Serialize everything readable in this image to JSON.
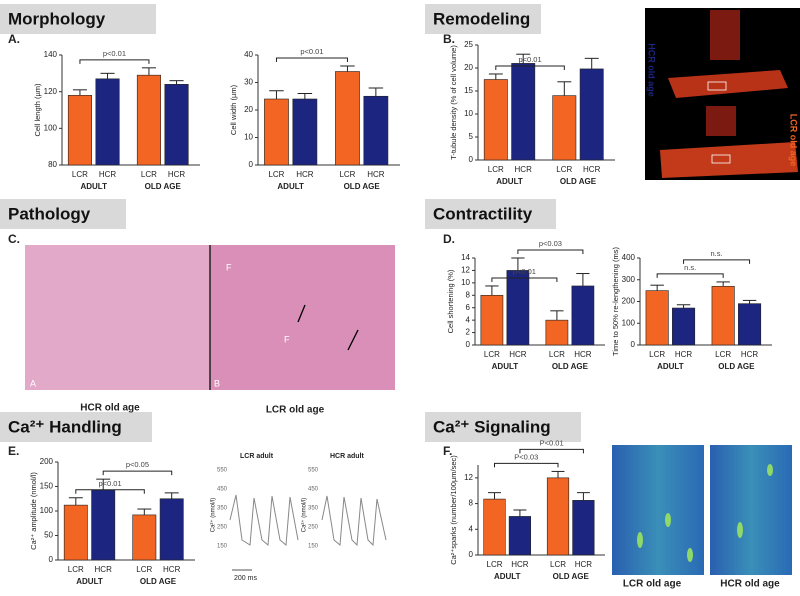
{
  "sections": [
    {
      "title": "Morphology",
      "panel": "A."
    },
    {
      "title": "Remodeling",
      "panel": "B."
    },
    {
      "title": "Pathology",
      "panel": "C."
    },
    {
      "title": "Contractility",
      "panel": "D."
    },
    {
      "title": "Ca²⁺ Handling",
      "panel": "E."
    },
    {
      "title": "Ca²⁺ Signaling",
      "panel": "F."
    }
  ],
  "images": {
    "remodeling": {
      "top_label": "HCR old age",
      "side_label": "LCR old age"
    },
    "histology": {
      "panel_left": "A",
      "panel_right": "B",
      "marks": [
        "F",
        "F"
      ],
      "captions": [
        "HCR old age",
        "LCR old age"
      ]
    },
    "traces": [
      {
        "title": "LCR adult",
        "ylabel": "Ca²⁺ (nmol/l)",
        "ticks": [
          550,
          450,
          350,
          250,
          150
        ],
        "scale": "200 ms"
      },
      {
        "title": "HCR adult",
        "ylabel": "Ca²⁺ (nmol/l)",
        "ticks": [
          550,
          450,
          350,
          250,
          150
        ]
      }
    ],
    "sparks": {
      "captions": [
        "LCR old age",
        "HCR old age"
      ]
    }
  },
  "chart_data": [
    {
      "type": "bar",
      "ylabel": "Cell length (µm)",
      "categories": [
        "LCR",
        "HCR",
        "LCR",
        "HCR"
      ],
      "groups": [
        "ADULT",
        "OLD AGE"
      ],
      "values": [
        118,
        127,
        129,
        124
      ],
      "errors": [
        3,
        3,
        4,
        2
      ],
      "colors": [
        "#f26522",
        "#1c2580",
        "#f26522",
        "#1c2580"
      ],
      "ylim": [
        80,
        140
      ],
      "yticks": [
        80,
        100,
        120,
        140
      ],
      "comparisons": [
        "p<0.01"
      ]
    },
    {
      "type": "bar",
      "ylabel": "Cell width (µm)",
      "categories": [
        "LCR",
        "HCR",
        "LCR",
        "HCR"
      ],
      "groups": [
        "ADULT",
        "OLD AGE"
      ],
      "values": [
        24,
        24,
        34,
        25
      ],
      "errors": [
        3,
        2,
        2,
        3
      ],
      "colors": [
        "#f26522",
        "#1c2580",
        "#f26522",
        "#1c2580"
      ],
      "ylim": [
        0,
        40
      ],
      "yticks": [
        0,
        10,
        20,
        30,
        40
      ],
      "comparisons": [
        "p<0.01"
      ]
    },
    {
      "type": "bar",
      "ylabel": "T-tubule density (% of cell volume)",
      "categories": [
        "LCR",
        "HCR",
        "LCR",
        "HCR"
      ],
      "groups": [
        "ADULT",
        "OLD AGE"
      ],
      "values": [
        17.5,
        21,
        14,
        19.8
      ],
      "errors": [
        1.2,
        2,
        3,
        2.3
      ],
      "colors": [
        "#f26522",
        "#1c2580",
        "#f26522",
        "#1c2580"
      ],
      "ylim": [
        0,
        25
      ],
      "yticks": [
        0,
        5,
        10,
        15,
        20,
        25
      ],
      "comparisons": [
        "p<0.01"
      ]
    },
    {
      "type": "bar",
      "ylabel": "Cell shortening (%)",
      "categories": [
        "LCR",
        "HCR",
        "LCR",
        "HCR"
      ],
      "groups": [
        "ADULT",
        "OLD AGE"
      ],
      "values": [
        8,
        12,
        4,
        9.5
      ],
      "errors": [
        1.5,
        2,
        1.5,
        2
      ],
      "colors": [
        "#f26522",
        "#1c2580",
        "#f26522",
        "#1c2580"
      ],
      "ylim": [
        0,
        14
      ],
      "yticks": [
        0,
        2,
        4,
        6,
        8,
        10,
        12,
        14
      ],
      "comparisons": [
        "p<0.01",
        "p<0.03"
      ]
    },
    {
      "type": "bar",
      "ylabel": "Time to 50% re-lengthening (ms)",
      "categories": [
        "LCR",
        "HCR",
        "LCR",
        "HCR"
      ],
      "groups": [
        "ADULT",
        "OLD AGE"
      ],
      "values": [
        250,
        170,
        270,
        190
      ],
      "errors": [
        25,
        15,
        20,
        15
      ],
      "colors": [
        "#f26522",
        "#1c2580",
        "#f26522",
        "#1c2580"
      ],
      "ylim": [
        0,
        400
      ],
      "yticks": [
        0,
        100,
        200,
        300,
        400
      ],
      "comparisons": [
        "n.s.",
        "n.s."
      ]
    },
    {
      "type": "bar",
      "ylabel": "Ca²⁺ amplitude (nmol/l)",
      "categories": [
        "LCR",
        "HCR",
        "LCR",
        "HCR"
      ],
      "groups": [
        "ADULT",
        "OLD AGE"
      ],
      "values": [
        112,
        143,
        92,
        125
      ],
      "errors": [
        15,
        22,
        12,
        12
      ],
      "colors": [
        "#f26522",
        "#1c2580",
        "#f26522",
        "#1c2580"
      ],
      "ylim": [
        0,
        200
      ],
      "yticks": [
        0,
        50,
        100,
        150,
        200
      ],
      "comparisons": [
        "p<0.01",
        "p<0.05"
      ]
    },
    {
      "type": "bar",
      "ylabel": "Ca²⁺sparks (number/100µm/sec)",
      "categories": [
        "LCR",
        "HCR",
        "LCR",
        "HCR"
      ],
      "groups": [
        "ADULT",
        "OLD AGE"
      ],
      "values": [
        8.7,
        6,
        12,
        8.5
      ],
      "errors": [
        1,
        1,
        1,
        1.2
      ],
      "colors": [
        "#f26522",
        "#1c2580",
        "#f26522",
        "#1c2580"
      ],
      "ylim": [
        0,
        14
      ],
      "yticks": [
        0,
        4,
        8,
        12
      ],
      "comparisons": [
        "P<0.03",
        "P<0.01"
      ]
    }
  ]
}
